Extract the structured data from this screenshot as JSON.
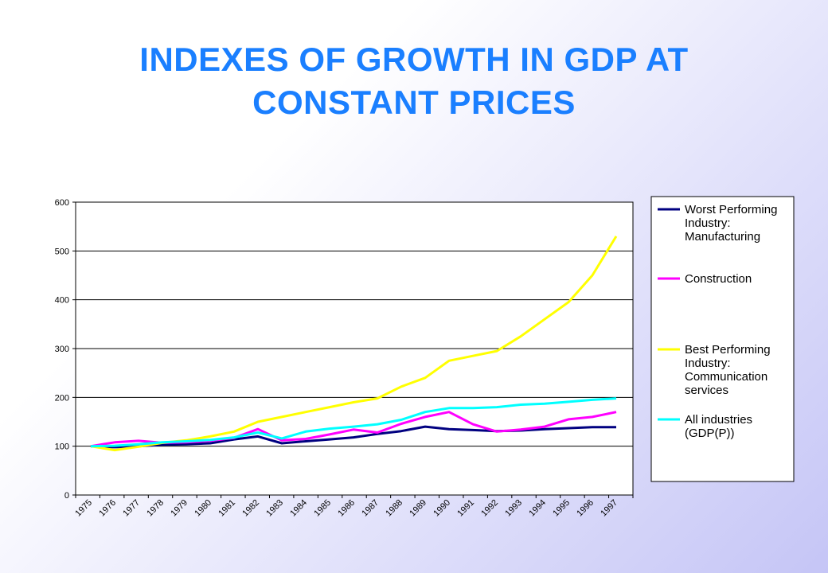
{
  "page": {
    "title_line1": "INDEXES OF GROWTH IN GDP AT",
    "title_line2": "CONSTANT PRICES",
    "title_color": "#1a7fff"
  },
  "chart_data": {
    "type": "line",
    "title": "INDEXES OF GROWTH IN GDP AT CONSTANT PRICES",
    "xlabel": "",
    "ylabel": "",
    "ylim": [
      0,
      600
    ],
    "yticks": [
      0,
      100,
      200,
      300,
      400,
      500,
      600
    ],
    "grid": "horizontal",
    "legend_position": "right",
    "x": [
      "1975",
      "1976",
      "1977",
      "1978",
      "1979",
      "1980",
      "1981",
      "1982",
      "1983",
      "1984",
      "1985",
      "1986",
      "1987",
      "1988",
      "1989",
      "1990",
      "1991",
      "1992",
      "1993",
      "1994",
      "1995",
      "1996",
      "1997"
    ],
    "series": [
      {
        "name": "Worst Performing Industry: Manufacturing",
        "legend_lines": [
          "Worst Performing",
          "Industry:",
          "Manufacturing"
        ],
        "color": "#000080",
        "values": [
          100,
          98,
          100,
          103,
          104,
          106,
          114,
          120,
          106,
          110,
          114,
          118,
          125,
          131,
          140,
          135,
          133,
          131,
          132,
          135,
          137,
          139,
          139
        ]
      },
      {
        "name": "Construction",
        "legend_lines": [
          "Construction"
        ],
        "color": "#ff00ff",
        "values": [
          100,
          108,
          111,
          107,
          108,
          111,
          117,
          135,
          112,
          115,
          124,
          134,
          128,
          146,
          160,
          170,
          145,
          130,
          134,
          140,
          155,
          160,
          170
        ]
      },
      {
        "name": "Best Performing Industry: Communication services",
        "legend_lines": [
          "Best Performing",
          "Industry:",
          "Communication",
          "services"
        ],
        "color": "#ffff00",
        "values": [
          100,
          92,
          99,
          107,
          112,
          120,
          130,
          150,
          160,
          170,
          180,
          190,
          198,
          222,
          240,
          275,
          285,
          295,
          325,
          360,
          395,
          450,
          530
        ]
      },
      {
        "name": "All industries (GDP(P))",
        "legend_lines": [
          "All industries",
          "(GDP(P))"
        ],
        "color": "#00ffff",
        "values": [
          100,
          101,
          104,
          108,
          110,
          113,
          118,
          128,
          116,
          130,
          136,
          140,
          145,
          154,
          170,
          178,
          178,
          180,
          185,
          187,
          191,
          195,
          198
        ]
      }
    ]
  }
}
